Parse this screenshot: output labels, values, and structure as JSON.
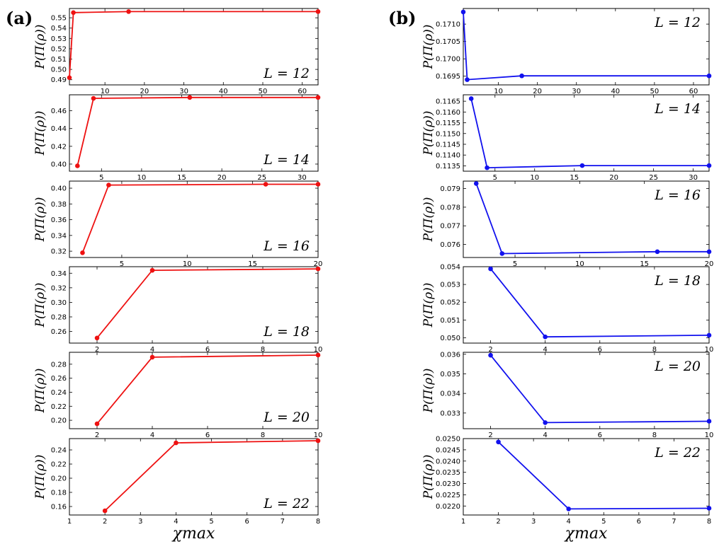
{
  "figure": {
    "panel_a_label": "(a)",
    "panel_b_label": "(b)",
    "colors": {
      "a": "#ee1111",
      "b": "#1111ee"
    }
  },
  "chart_data": [
    {
      "type": "line",
      "panel": "a",
      "L_label": "L = 12",
      "ylabel": "P(Π(ρ))",
      "xlabel": "",
      "x": [
        1,
        2,
        16,
        64
      ],
      "y": [
        0.492,
        0.555,
        0.556,
        0.556
      ],
      "xlim": [
        1,
        64
      ],
      "ylim": [
        0.485,
        0.559
      ],
      "xticks": [
        10,
        20,
        30,
        40,
        50,
        60
      ],
      "xtick_labels": [
        "10",
        "20",
        "30",
        "40",
        "50",
        "60"
      ],
      "yticks": [
        0.49,
        0.5,
        0.51,
        0.52,
        0.53,
        0.54,
        0.55
      ],
      "ytick_labels": [
        "0.49",
        "0.50",
        "0.51",
        "0.52",
        "0.53",
        "0.54",
        "0.55"
      ]
    },
    {
      "type": "line",
      "panel": "a",
      "L_label": "L = 14",
      "ylabel": "P(Π(ρ))",
      "xlabel": "",
      "x": [
        2,
        4,
        16,
        32
      ],
      "y": [
        0.398,
        0.474,
        0.475,
        0.475
      ],
      "xlim": [
        1,
        32
      ],
      "ylim": [
        0.392,
        0.478
      ],
      "xticks": [
        5,
        10,
        15,
        20,
        25,
        30
      ],
      "xtick_labels": [
        "5",
        "10",
        "15",
        "20",
        "25",
        "30"
      ],
      "yticks": [
        0.4,
        0.42,
        0.44,
        0.46
      ],
      "ytick_labels": [
        "0.40",
        "0.42",
        "0.44",
        "0.46"
      ]
    },
    {
      "type": "line",
      "panel": "a",
      "L_label": "L = 16",
      "ylabel": "P(Π(ρ))",
      "xlabel": "",
      "x": [
        2,
        4,
        16,
        20
      ],
      "y": [
        0.318,
        0.404,
        0.405,
        0.405
      ],
      "xlim": [
        1,
        20
      ],
      "ylim": [
        0.312,
        0.409
      ],
      "xticks": [
        5,
        10,
        15,
        20
      ],
      "xtick_labels": [
        "5",
        "10",
        "15",
        "20"
      ],
      "yticks": [
        0.32,
        0.34,
        0.36,
        0.38,
        0.4
      ],
      "ytick_labels": [
        "0.32",
        "0.34",
        "0.36",
        "0.38",
        "0.40"
      ]
    },
    {
      "type": "line",
      "panel": "a",
      "L_label": "L = 18",
      "ylabel": "P(Π(ρ))",
      "xlabel": "",
      "x": [
        2,
        4,
        10
      ],
      "y": [
        0.251,
        0.344,
        0.346
      ],
      "xlim": [
        1,
        10
      ],
      "ylim": [
        0.244,
        0.349
      ],
      "xticks": [
        2,
        4,
        6,
        8,
        10
      ],
      "xtick_labels": [
        "2",
        "4",
        "6",
        "8",
        "10"
      ],
      "yticks": [
        0.26,
        0.28,
        0.3,
        0.32,
        0.34
      ],
      "ytick_labels": [
        "0.26",
        "0.28",
        "0.30",
        "0.32",
        "0.34"
      ]
    },
    {
      "type": "line",
      "panel": "a",
      "L_label": "L = 20",
      "ylabel": "P(Π(ρ))",
      "xlabel": "",
      "x": [
        2,
        4,
        10
      ],
      "y": [
        0.195,
        0.29,
        0.293
      ],
      "xlim": [
        1,
        10
      ],
      "ylim": [
        0.188,
        0.297
      ],
      "xticks": [
        2,
        4,
        6,
        8,
        10
      ],
      "xtick_labels": [
        "2",
        "4",
        "6",
        "8",
        "10"
      ],
      "yticks": [
        0.2,
        0.22,
        0.24,
        0.26,
        0.28
      ],
      "ytick_labels": [
        "0.20",
        "0.22",
        "0.24",
        "0.26",
        "0.28"
      ]
    },
    {
      "type": "line",
      "panel": "a",
      "L_label": "L = 22",
      "ylabel": "P(Π(ρ))",
      "xlabel": "χmax",
      "x": [
        2,
        4,
        8
      ],
      "y": [
        0.154,
        0.25,
        0.253
      ],
      "xlim": [
        1,
        8
      ],
      "ylim": [
        0.148,
        0.256
      ],
      "xticks": [
        1,
        2,
        3,
        4,
        5,
        6,
        7,
        8
      ],
      "xtick_labels": [
        "1",
        "2",
        "3",
        "4",
        "5",
        "6",
        "7",
        "8"
      ],
      "yticks": [
        0.16,
        0.18,
        0.2,
        0.22,
        0.24
      ],
      "ytick_labels": [
        "0.16",
        "0.18",
        "0.20",
        "0.22",
        "0.24"
      ]
    },
    {
      "type": "line",
      "panel": "b",
      "L_label": "L = 12",
      "ylabel": "P(Π(ρ))",
      "xlabel": "",
      "x": [
        1,
        2,
        16,
        64
      ],
      "y": [
        0.17135,
        0.1694,
        0.16951,
        0.16951
      ],
      "xlim": [
        1,
        64
      ],
      "ylim": [
        0.16925,
        0.17145
      ],
      "xticks": [
        10,
        20,
        30,
        40,
        50,
        60
      ],
      "xtick_labels": [
        "10",
        "20",
        "30",
        "40",
        "50",
        "60"
      ],
      "yticks": [
        0.1695,
        0.17,
        0.1705,
        0.171
      ],
      "ytick_labels": [
        "0.1695",
        "0.1700",
        "0.1705",
        "0.1710"
      ]
    },
    {
      "type": "line",
      "panel": "b",
      "L_label": "L = 14",
      "ylabel": "P(Π(ρ))",
      "xlabel": "",
      "x": [
        2,
        4,
        16,
        32
      ],
      "y": [
        0.11662,
        0.11341,
        0.11351,
        0.11351
      ],
      "xlim": [
        1,
        32
      ],
      "ylim": [
        0.11325,
        0.1168
      ],
      "xticks": [
        5,
        10,
        15,
        20,
        25,
        30
      ],
      "xtick_labels": [
        "5",
        "10",
        "15",
        "20",
        "25",
        "30"
      ],
      "yticks": [
        0.1135,
        0.114,
        0.1145,
        0.115,
        0.1155,
        0.116,
        0.1165
      ],
      "ytick_labels": [
        "0.1135",
        "0.1140",
        "0.1145",
        "0.1150",
        "0.1155",
        "0.1160",
        "0.1165"
      ]
    },
    {
      "type": "line",
      "panel": "b",
      "L_label": "L = 16",
      "ylabel": "P(Π(ρ))",
      "xlabel": "",
      "x": [
        2,
        4,
        16,
        20
      ],
      "y": [
        0.07927,
        0.07551,
        0.07561,
        0.07561
      ],
      "xlim": [
        1,
        20
      ],
      "ylim": [
        0.0753,
        0.0794
      ],
      "xticks": [
        5,
        10,
        15,
        20
      ],
      "xtick_labels": [
        "5",
        "10",
        "15",
        "20"
      ],
      "yticks": [
        0.076,
        0.077,
        0.078,
        0.079
      ],
      "ytick_labels": [
        "0.076",
        "0.077",
        "0.078",
        "0.079"
      ]
    },
    {
      "type": "line",
      "panel": "b",
      "L_label": "L = 18",
      "ylabel": "P(Π(ρ))",
      "xlabel": "",
      "x": [
        2,
        4,
        10
      ],
      "y": [
        0.05388,
        0.05005,
        0.05014
      ],
      "xlim": [
        1,
        10
      ],
      "ylim": [
        0.0497,
        0.054
      ],
      "xticks": [
        2,
        4,
        6,
        8,
        10
      ],
      "xtick_labels": [
        "2",
        "4",
        "6",
        "8",
        "10"
      ],
      "yticks": [
        0.05,
        0.051,
        0.052,
        0.053,
        0.054
      ],
      "ytick_labels": [
        "0.050",
        "0.051",
        "0.052",
        "0.053",
        "0.054"
      ]
    },
    {
      "type": "line",
      "panel": "b",
      "L_label": "L = 20",
      "ylabel": "P(Π(ρ))",
      "xlabel": "",
      "x": [
        2,
        4,
        10
      ],
      "y": [
        0.03595,
        0.03251,
        0.03258
      ],
      "xlim": [
        1,
        10
      ],
      "ylim": [
        0.0322,
        0.0361
      ],
      "xticks": [
        2,
        4,
        6,
        8,
        10
      ],
      "xtick_labels": [
        "2",
        "4",
        "6",
        "8",
        "10"
      ],
      "yticks": [
        0.033,
        0.034,
        0.035,
        0.036
      ],
      "ytick_labels": [
        "0.033",
        "0.034",
        "0.035",
        "0.036"
      ]
    },
    {
      "type": "line",
      "panel": "b",
      "L_label": "L = 22",
      "ylabel": "P(Π(ρ))",
      "xlabel": "χmax",
      "x": [
        2,
        4,
        8
      ],
      "y": [
        0.02485,
        0.02187,
        0.0219
      ],
      "xlim": [
        1,
        8
      ],
      "ylim": [
        0.0216,
        0.025
      ],
      "xticks": [
        1,
        2,
        3,
        4,
        5,
        6,
        7,
        8
      ],
      "xtick_labels": [
        "1",
        "2",
        "3",
        "4",
        "5",
        "6",
        "7",
        "8"
      ],
      "yticks": [
        0.022,
        0.0225,
        0.023,
        0.0235,
        0.024,
        0.0245,
        0.025
      ],
      "ytick_labels": [
        "0.0220",
        "0.0225",
        "0.0230",
        "0.0235",
        "0.0240",
        "0.0245",
        "0.0250"
      ]
    }
  ]
}
